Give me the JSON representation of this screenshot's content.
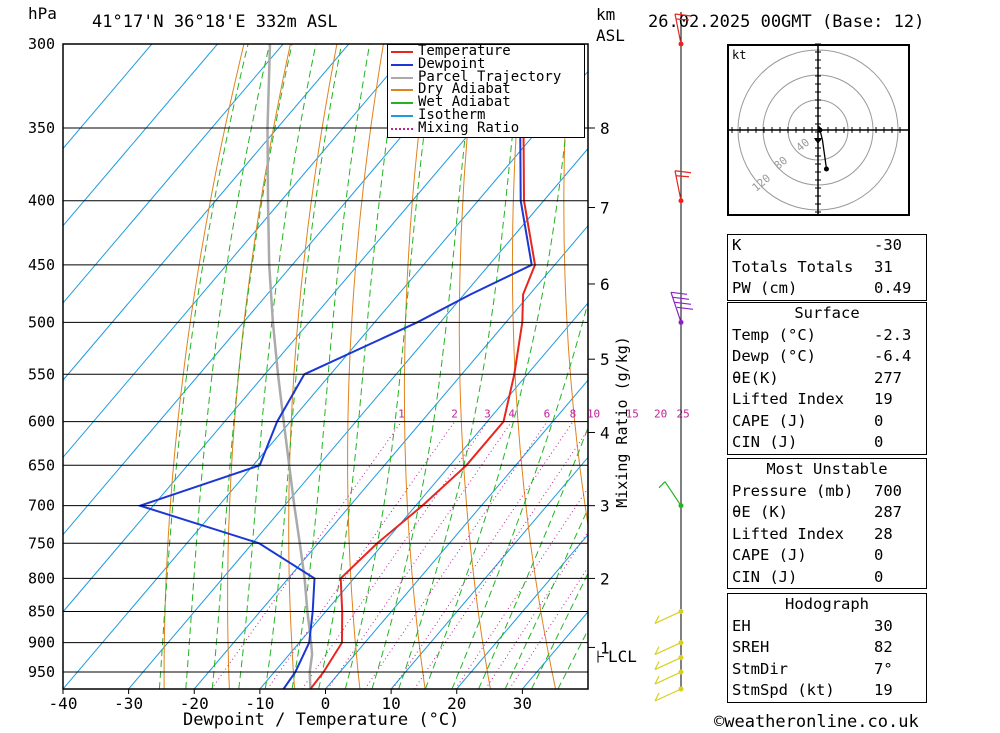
{
  "header": {
    "pressure_unit": "hPa",
    "location": "41°17'N  36°18'E  332m  ASL",
    "km_label": "km",
    "asl_label": "ASL",
    "datetime": "26.02.2025  00GMT  (Base: 12)"
  },
  "footer": {
    "xlabel": "Dewpoint / Temperature (°C)",
    "copyright": "©weatheronline.co.uk"
  },
  "mixing_ratio_label": "Mixing Ratio (g/kg)",
  "lcl_label": "LCL",
  "hodograph": {
    "unit": "kt",
    "ring_labels": [
      "40",
      "80",
      "120"
    ],
    "points": [
      [
        0.6,
        3.0
      ],
      [
        1.5,
        0.0
      ],
      [
        3.5,
        -8.0
      ],
      [
        6.5,
        -30.0
      ]
    ]
  },
  "indices": {
    "rows": [
      {
        "k": "K",
        "v": "-30"
      },
      {
        "k": "Totals Totals",
        "v": "31"
      },
      {
        "k": "PW (cm)",
        "v": "0.49"
      }
    ]
  },
  "surface": {
    "title": "Surface",
    "rows": [
      {
        "k": "Temp (°C)",
        "v": "-2.3"
      },
      {
        "k": "Dewp (°C)",
        "v": "-6.4"
      },
      {
        "k": "θE(K)",
        "v": "277"
      },
      {
        "k": "Lifted Index",
        "v": "19"
      },
      {
        "k": "CAPE (J)",
        "v": "0"
      },
      {
        "k": "CIN (J)",
        "v": "0"
      }
    ]
  },
  "most_unstable": {
    "title": "Most Unstable",
    "rows": [
      {
        "k": "Pressure (mb)",
        "v": "700"
      },
      {
        "k": "θE (K)",
        "v": "287"
      },
      {
        "k": "Lifted Index",
        "v": "28"
      },
      {
        "k": "CAPE (J)",
        "v": "0"
      },
      {
        "k": "CIN (J)",
        "v": "0"
      }
    ]
  },
  "hodograph_stats": {
    "title": "Hodograph",
    "rows": [
      {
        "k": "EH",
        "v": "30"
      },
      {
        "k": "SREH",
        "v": "82"
      },
      {
        "k": "StmDir",
        "v": "7°"
      },
      {
        "k": "StmSpd (kt)",
        "v": "19"
      }
    ]
  },
  "colors": {
    "temperature": "#e8251f",
    "dewpoint": "#1b38d4",
    "parcel": "#aaaaaa",
    "dry_adiabat": "#e0821e",
    "wet_adiabat": "#22b422",
    "isotherm": "#1f9ae0",
    "mixing_ratio": "#c0229a"
  },
  "chart_data": {
    "type": "line",
    "title": "",
    "xlabel": "Dewpoint / Temperature (°C)",
    "ylabel": "hPa",
    "xlim": [
      -40,
      40
    ],
    "ylim": [
      980,
      300
    ],
    "x_ticks": [
      -40,
      -30,
      -20,
      -10,
      0,
      10,
      20,
      30
    ],
    "y_ticks": [
      300,
      350,
      400,
      450,
      500,
      550,
      600,
      650,
      700,
      750,
      800,
      850,
      900,
      950
    ],
    "km_ticks": [
      {
        "km": "8",
        "p": 350
      },
      {
        "km": "7",
        "p": 405
      },
      {
        "km": "6",
        "p": 466
      },
      {
        "km": "5",
        "p": 535
      },
      {
        "km": "4",
        "p": 612
      },
      {
        "km": "3",
        "p": 700
      },
      {
        "km": "2",
        "p": 800
      },
      {
        "km": "1",
        "p": 908
      }
    ],
    "lcl_pressure": 920,
    "isotherms": [
      -110,
      -100,
      -90,
      -80,
      -70,
      -60,
      -50,
      -40,
      -30,
      -20,
      -10,
      0,
      10,
      20,
      30,
      40
    ],
    "dry_adiabats_theta_k": [
      250,
      260,
      270,
      280,
      290,
      300,
      310,
      320,
      330,
      340,
      350,
      360,
      370,
      380,
      390,
      400,
      410,
      420,
      430,
      440
    ],
    "wet_adiabats_t0_c": [
      -24,
      -20,
      -16,
      -12,
      -8,
      -4,
      0,
      4,
      8,
      12,
      16,
      20,
      24,
      28,
      32,
      36
    ],
    "mixing_ratios": [
      "1",
      "2",
      "3",
      "4",
      "6",
      "8",
      "10",
      "15",
      "20",
      "25"
    ],
    "mixing_ratio_label_pressure": 600,
    "legend": [
      "Temperature",
      "Dewpoint",
      "Parcel Trajectory",
      "Dry Adiabat",
      "Wet Adiabat",
      "Isotherm",
      "Mixing Ratio"
    ],
    "series": [
      {
        "name": "Temperature",
        "p": [
          980,
          950,
          900,
          850,
          800,
          750,
          700,
          650,
          600,
          550,
          500,
          475,
          450,
          400,
          350,
          300
        ],
        "t": [
          -2.3,
          -2.5,
          -3.5,
          -7.5,
          -12.0,
          -11.0,
          -9.0,
          -7.5,
          -7.5,
          -12.0,
          -17.5,
          -21.0,
          -23.0,
          -33.0,
          -42.5,
          -54.0
        ]
      },
      {
        "name": "Dewpoint",
        "p": [
          980,
          950,
          900,
          850,
          800,
          750,
          700,
          650,
          600,
          550,
          500,
          475,
          450,
          400,
          350,
          300
        ],
        "t": [
          -6.4,
          -6.8,
          -8.5,
          -12.0,
          -16.0,
          -29.0,
          -52.0,
          -39.0,
          -42.0,
          -44.0,
          -33.5,
          -29.0,
          -23.5,
          -33.5,
          -43.0,
          -54.5
        ]
      },
      {
        "name": "Parcel Trajectory",
        "p": [
          980,
          950,
          920,
          900,
          850,
          800,
          750,
          700,
          650,
          600,
          550,
          500,
          450,
          400,
          350,
          300
        ],
        "t": [
          -2.3,
          -4.6,
          -6.5,
          -8.2,
          -12.8,
          -17.5,
          -22.8,
          -28.5,
          -34.5,
          -41.0,
          -48.0,
          -55.5,
          -63.5,
          -72.0,
          -81.5,
          -92.0
        ]
      }
    ],
    "wind_barbs": [
      {
        "p": 300,
        "speed_kt": 25,
        "color": "#e8251f"
      },
      {
        "p": 400,
        "speed_kt": 20,
        "color": "#e8251f"
      },
      {
        "p": 500,
        "speed_kt": 40,
        "color": "#8a22c8"
      },
      {
        "p": 700,
        "speed_kt": 10,
        "color": "#22b422"
      },
      {
        "p": 850,
        "speed_kt": 10,
        "color": "#d8d020"
      },
      {
        "p": 900,
        "speed_kt": 10,
        "color": "#d8d020"
      },
      {
        "p": 925,
        "speed_kt": 10,
        "color": "#d8d020"
      },
      {
        "p": 950,
        "speed_kt": 10,
        "color": "#d8d020"
      },
      {
        "p": 980,
        "speed_kt": 10,
        "color": "#d8d020"
      }
    ]
  }
}
